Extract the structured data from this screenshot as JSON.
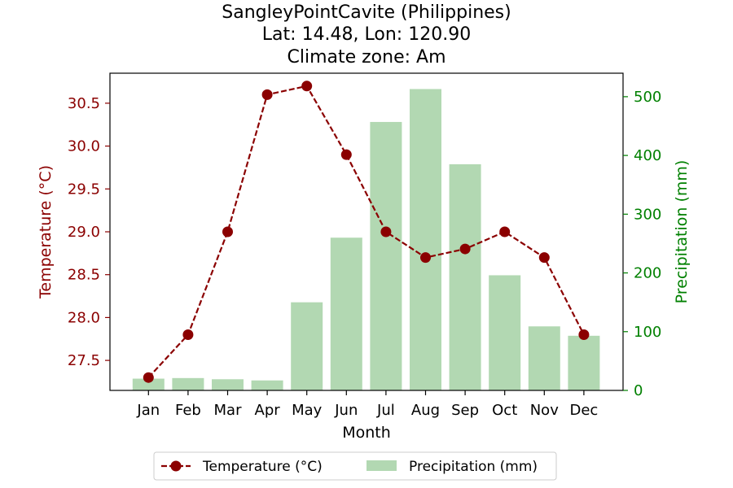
{
  "title_lines": [
    "SangleyPointCavite (Philippines)",
    "Lat: 14.48, Lon: 120.90",
    "Climate zone: Am"
  ],
  "chart_data": {
    "type": "bar",
    "categories": [
      "Jan",
      "Feb",
      "Mar",
      "Apr",
      "May",
      "Jun",
      "Jul",
      "Aug",
      "Sep",
      "Oct",
      "Nov",
      "Dec"
    ],
    "xlabel": "Month",
    "series": [
      {
        "name": "Temperature (°C)",
        "type": "line",
        "axis": "left",
        "color": "#8b0000",
        "values": [
          27.3,
          27.8,
          29.0,
          30.6,
          30.7,
          29.9,
          29.0,
          28.7,
          28.8,
          29.0,
          28.7,
          27.8
        ]
      },
      {
        "name": "Precipitation (mm)",
        "type": "bar",
        "axis": "right",
        "color": "#b2d8b2",
        "values": [
          20,
          21,
          19,
          17,
          150,
          260,
          457,
          513,
          385,
          196,
          109,
          93
        ]
      }
    ],
    "left_axis": {
      "label": "Temperature (°C)",
      "color": "#8b0000",
      "range": [
        27.15,
        30.85
      ],
      "ticks": [
        "27.5",
        "28.0",
        "28.5",
        "29.0",
        "29.5",
        "30.0",
        "30.5"
      ]
    },
    "right_axis": {
      "label": "Precipitation (mm)",
      "color": "#008000",
      "range": [
        0,
        540
      ],
      "ticks": [
        "0",
        "100",
        "200",
        "300",
        "400",
        "500"
      ]
    },
    "legend": {
      "position": "bottom-center",
      "entries": [
        "Temperature (°C)",
        "Precipitation (mm)"
      ]
    },
    "grid": false
  }
}
